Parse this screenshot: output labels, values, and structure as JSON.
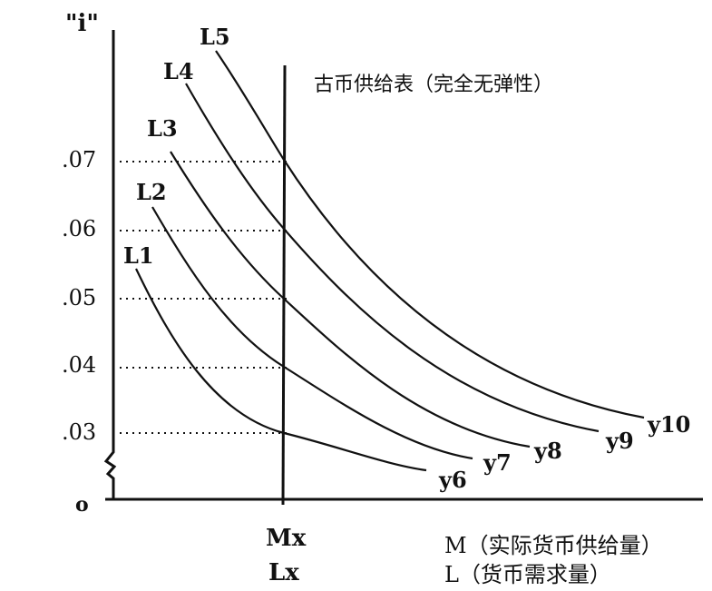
{
  "diagram": {
    "y_axis_label": "\"i\"",
    "origin_label": "o",
    "supply_label": "古币供给表（完全无弹性）",
    "y_ticks": [
      ".07",
      ".06",
      ".05",
      ".04",
      ".03"
    ],
    "x_marker_top": "Mx",
    "x_marker_bottom": "Lx",
    "x_legend_m": "M（实际货币供给量）",
    "x_legend_l": "L（货币需求量）",
    "curves": [
      {
        "label": "L1",
        "income": "y6"
      },
      {
        "label": "L2",
        "income": "y7"
      },
      {
        "label": "L3",
        "income": "y8"
      },
      {
        "label": "L4",
        "income": "y9"
      },
      {
        "label": "L5",
        "income": "y10"
      }
    ]
  }
}
